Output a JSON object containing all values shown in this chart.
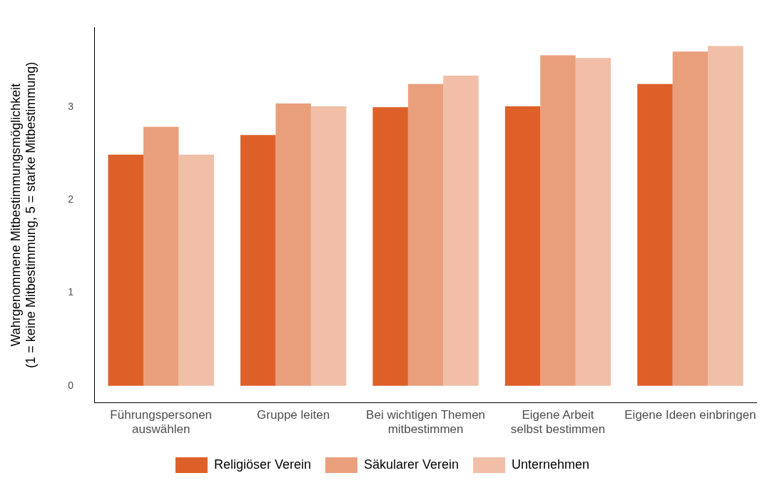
{
  "chart_data": {
    "type": "bar",
    "ylabel": "Wahrgenommene Mitbestimmungsmöglichkeit\n(1 = keine Mitbestimmung, 5 = starke Mitbestimmung)",
    "categories": [
      "Führungspersonen\nauswählen",
      "Gruppe leiten",
      "Bei wichtigen Themen\nmitbestimmen",
      "Eigene Arbeit\nselbst bestimmen",
      "Eigene Ideen einbringen"
    ],
    "series": [
      {
        "name": "Religiöser Verein",
        "color": "#dd6029",
        "values": [
          2.49,
          2.7,
          3.0,
          3.01,
          3.25
        ]
      },
      {
        "name": "Säkularer Verein",
        "color": "#ea9f7c",
        "values": [
          2.79,
          3.04,
          3.25,
          3.56,
          3.6
        ]
      },
      {
        "name": "Unternehmen",
        "color": "#f1bea7",
        "values": [
          2.49,
          3.01,
          3.34,
          3.53,
          3.66
        ]
      }
    ],
    "ylim": [
      -0.18,
      3.86
    ],
    "yticks": [
      0,
      1,
      2,
      3
    ],
    "grid": false,
    "legend": "bottom"
  }
}
